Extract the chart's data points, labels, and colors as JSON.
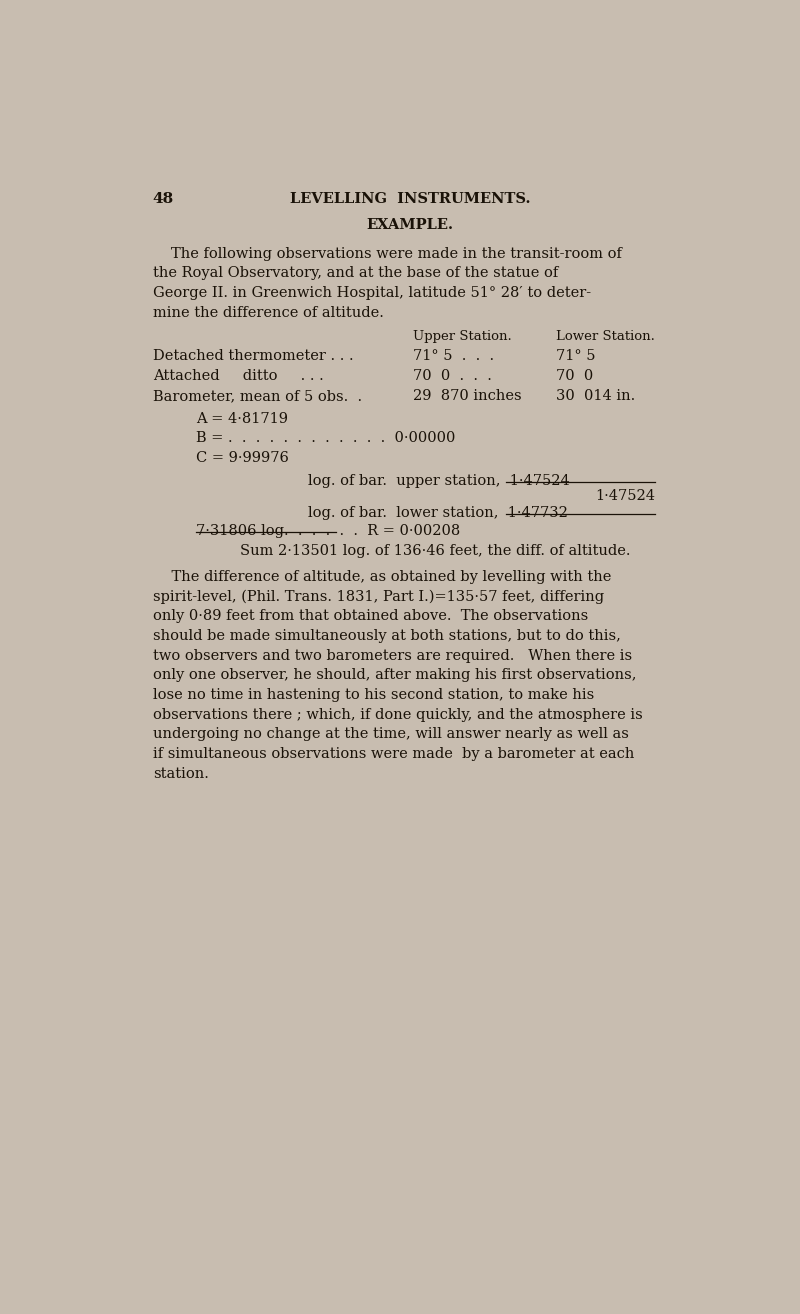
{
  "bg_color": "#c8bdb0",
  "text_color": "#1a1208",
  "page_width": 8.0,
  "page_height": 13.14,
  "dpi": 100,
  "page_num": "48",
  "header": "LEVELLING  INSTRUMENTS.",
  "section_title": "EXAMPLE.",
  "para1_lines": [
    "The following observations were made in the transit-room of",
    "the Royal Observatory, and at the base of the statue of",
    "George II. in Greenwich Hospital, latitude 51° 28′ to deter-",
    "mine the difference of altitude."
  ],
  "col_header_upper": "Upper Station.",
  "col_header_lower": "Lower Station.",
  "row1_label": "Detached thermometer . . .",
  "row1_upper": "71° 5  .  .  .",
  "row1_lower": "71° 5",
  "row2_label": "Attached     ditto     . . .",
  "row2_upper": "70  0  .  .  .",
  "row2_lower": "70  0",
  "row3_label": "Barometer, mean of 5 obs.  .",
  "row3_upper": "29  870 inches",
  "row3_lower": "30  014 in.",
  "eq_A": "A = 4·81719",
  "eq_B": "B = .  .  .  .  .  .  .  .  .  .  .  .  0·00000",
  "eq_C": "C = 9·99976",
  "log_upper_text": "log. of bar.  upper station,  1·47524",
  "log_upper_val": "1·47524",
  "log_lower_text": "log. of bar.  lower station,  1·47732",
  "sum_row": "7·31806 log.  .  .  .  .  .  R = 0·00208",
  "sum_line": "Sum 2·13501 log. of 136·46 feet, the diff. of altitude.",
  "para2_lines": [
    "    The difference of altitude, as obtained by levelling with the",
    "spirit-level, (Phil. Trans. 1831, Part I.)=135·57 feet, differing",
    "only 0·89 feet from that obtained above.  The observations",
    "should be made simultaneously at both stations, but to do this,",
    "two observers and two barometers are required.   When there is",
    "only one observer, he should, after making his first observations,",
    "lose no time in hastening to his second station, to make his",
    "observations there ; which, if done quickly, and the atmosphere is",
    "undergoing no change at the time, will answer nearly as well as",
    "if simultaneous observations were made  by a barometer at each",
    "station."
  ]
}
